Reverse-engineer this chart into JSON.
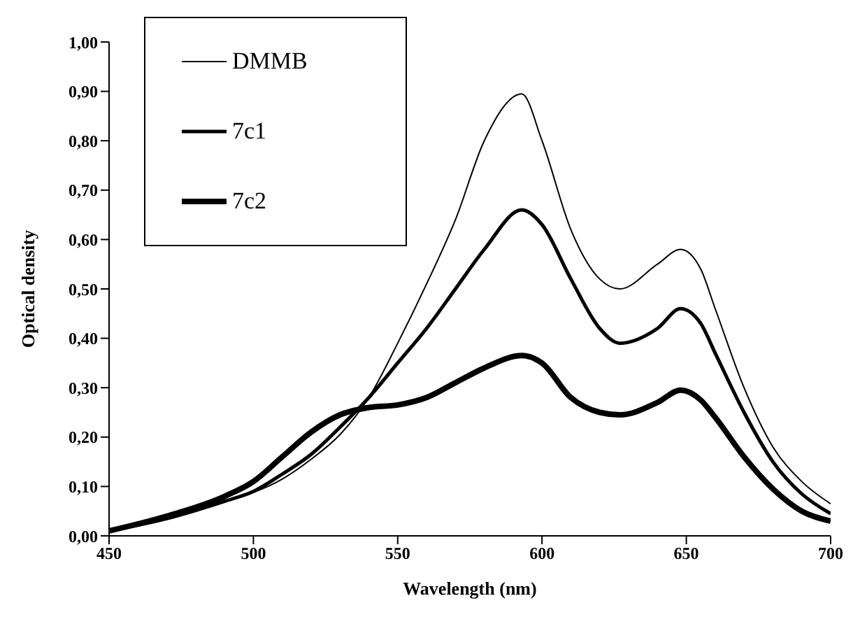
{
  "chart_data": {
    "type": "line",
    "xlabel": "Wavelength (nm)",
    "ylabel": "Optical density",
    "legend": "top left",
    "marker": "none",
    "line_style": "solid",
    "grid": false,
    "xlim": [
      450,
      700
    ],
    "xticks": [
      450,
      500,
      550,
      600,
      650,
      700
    ],
    "ylim": [
      0,
      1
    ],
    "yticks": [
      {
        "value": 0,
        "label": "0,00"
      },
      {
        "value": 0.1,
        "label": "0,10"
      },
      {
        "value": 0.2,
        "label": "0,20"
      },
      {
        "value": 0.3,
        "label": "0,30"
      },
      {
        "value": 0.4,
        "label": "0,40"
      },
      {
        "value": 0.5,
        "label": "0,50"
      },
      {
        "value": 0.6,
        "label": "0,60"
      },
      {
        "value": 0.7,
        "label": "0,70"
      },
      {
        "value": 0.8,
        "label": "0,80"
      },
      {
        "value": 0.9,
        "label": "0,90"
      },
      {
        "value": 1,
        "label": "1,00"
      }
    ],
    "x": [
      450,
      470,
      490,
      500,
      510,
      520,
      530,
      540,
      550,
      560,
      570,
      580,
      593,
      600,
      610,
      620,
      627,
      640,
      648,
      655,
      660,
      670,
      680,
      690,
      700
    ],
    "series": [
      {
        "name": "DMMB",
        "color": "#000000",
        "values": [
          0.01,
          0.035,
          0.07,
          0.088,
          0.115,
          0.155,
          0.205,
          0.28,
          0.39,
          0.51,
          0.64,
          0.8,
          0.895,
          0.8,
          0.62,
          0.52,
          0.5,
          0.55,
          0.58,
          0.54,
          0.46,
          0.3,
          0.18,
          0.11,
          0.065
        ]
      },
      {
        "name": "7c1",
        "color": "#000000",
        "values": [
          0.01,
          0.035,
          0.07,
          0.09,
          0.125,
          0.165,
          0.22,
          0.28,
          0.35,
          0.42,
          0.5,
          0.58,
          0.66,
          0.63,
          0.52,
          0.42,
          0.39,
          0.42,
          0.46,
          0.43,
          0.37,
          0.25,
          0.15,
          0.085,
          0.045
        ]
      },
      {
        "name": "7c2",
        "color": "#000000",
        "values": [
          0.01,
          0.04,
          0.08,
          0.11,
          0.16,
          0.21,
          0.245,
          0.26,
          0.265,
          0.28,
          0.31,
          0.34,
          0.365,
          0.35,
          0.28,
          0.25,
          0.245,
          0.27,
          0.295,
          0.275,
          0.24,
          0.16,
          0.095,
          0.05,
          0.03
        ]
      }
    ]
  }
}
